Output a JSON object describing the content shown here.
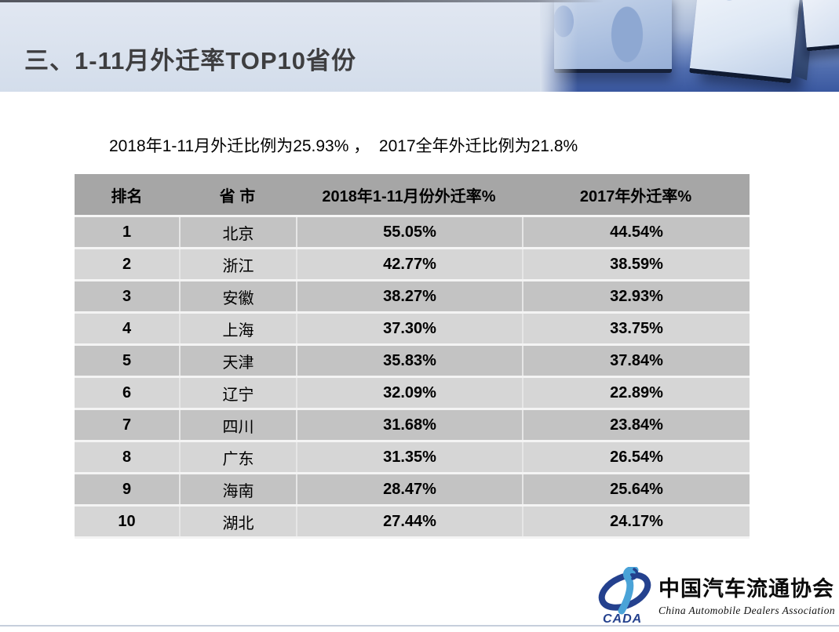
{
  "slide": {
    "title": "三、1-11月外迁率TOP10省份",
    "subtitle": "2018年1-11月外迁比例为25.93% ，  2017全年外迁比例为21.8%"
  },
  "table": {
    "headers": [
      "排名",
      "省 市",
      "2018年1-11月份外迁率%",
      "2017年外迁率%"
    ],
    "rows": [
      {
        "rank": "1",
        "province": "北京",
        "rate2018": "55.05%",
        "rate2017": "44.54%"
      },
      {
        "rank": "2",
        "province": "浙江",
        "rate2018": "42.77%",
        "rate2017": "38.59%"
      },
      {
        "rank": "3",
        "province": "安徽",
        "rate2018": "38.27%",
        "rate2017": "32.93%"
      },
      {
        "rank": "4",
        "province": "上海",
        "rate2018": "37.30%",
        "rate2017": "33.75%"
      },
      {
        "rank": "5",
        "province": "天津",
        "rate2018": "35.83%",
        "rate2017": "37.84%"
      },
      {
        "rank": "6",
        "province": "辽宁",
        "rate2018": "32.09%",
        "rate2017": "22.89%"
      },
      {
        "rank": "7",
        "province": "四川",
        "rate2018": "31.68%",
        "rate2017": "23.84%"
      },
      {
        "rank": "8",
        "province": "广东",
        "rate2018": "31.35%",
        "rate2017": "26.54%"
      },
      {
        "rank": "9",
        "province": "海南",
        "rate2018": "28.47%",
        "rate2017": "25.64%"
      },
      {
        "rank": "10",
        "province": "湖北",
        "rate2018": "27.44%",
        "rate2017": "24.17%"
      }
    ]
  },
  "footer": {
    "logo_acronym": "CADA",
    "org_name_cn": "中国汽车流通协会",
    "org_name_en": "China Automobile Dealers Association"
  },
  "colors": {
    "header_band": "#dae2ee",
    "banner_blue": "#3a58a0",
    "table_header_gray": "#a6a6a6",
    "row_odd_gray": "#c3c3c3",
    "row_even_gray": "#d6d6d6",
    "logo_navy": "#24418e",
    "logo_cyan": "#4aa3d8",
    "title_text": "#3e3e40"
  }
}
